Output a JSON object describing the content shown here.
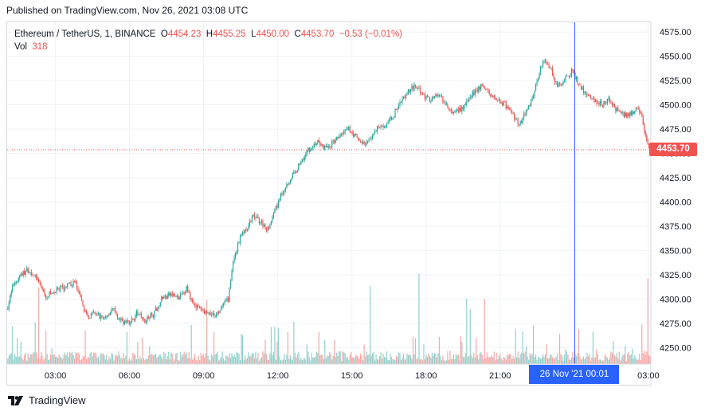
{
  "published": "Published on TradingView.com, Nov 26, 2021 03:08 UTC",
  "brand": {
    "name": "TradingView",
    "logo_icon": "tradingview-logo-icon"
  },
  "legend": {
    "symbol": "Ethereum / TetherUS, 1, BINANCE",
    "o_label": "O",
    "o_value": "4454.23",
    "h_label": "H",
    "h_value": "4455.25",
    "l_label": "L",
    "l_value": "4450.00",
    "c_label": "C",
    "c_value": "4453.70",
    "change": "−0.53 (−0.01%)",
    "vol_label": "Vol",
    "vol_value": "318"
  },
  "price_badge": "4453.70",
  "time_badge": "26 Nov '21   00:01",
  "colors": {
    "up": "#26a69a",
    "down": "#ef5350",
    "crosshair": "#2962ff",
    "grid": "#f0f3fa"
  },
  "chart_data": {
    "type": "candlestick",
    "interval_minutes": 1,
    "x_range_hours": [
      1.05,
      27.1
    ],
    "y_range": [
      4233,
      4585
    ],
    "x_ticks": [
      {
        "label": "03:00",
        "h": 3
      },
      {
        "label": "06:00",
        "h": 6
      },
      {
        "label": "09:00",
        "h": 9
      },
      {
        "label": "12:00",
        "h": 12
      },
      {
        "label": "15:00",
        "h": 15
      },
      {
        "label": "18:00",
        "h": 18
      },
      {
        "label": "21:00",
        "h": 21
      },
      {
        "label": "03:00",
        "h": 27
      }
    ],
    "y_ticks": [
      4250,
      4275,
      4300,
      4325,
      4350,
      4375,
      4400,
      4425,
      4450,
      4475,
      4500,
      4525,
      4550,
      4575
    ],
    "last_price": 4453.7,
    "crosshair_h": 24.02,
    "close_path_approx": [
      [
        1.05,
        4290
      ],
      [
        1.3,
        4315
      ],
      [
        1.6,
        4325
      ],
      [
        1.9,
        4330
      ],
      [
        2.3,
        4320
      ],
      [
        2.6,
        4303
      ],
      [
        3.0,
        4308
      ],
      [
        3.4,
        4312
      ],
      [
        3.8,
        4318
      ],
      [
        4.0,
        4300
      ],
      [
        4.3,
        4282
      ],
      [
        4.6,
        4285
      ],
      [
        5.0,
        4280
      ],
      [
        5.3,
        4290
      ],
      [
        5.6,
        4278
      ],
      [
        6.0,
        4275
      ],
      [
        6.3,
        4285
      ],
      [
        6.6,
        4278
      ],
      [
        7.0,
        4285
      ],
      [
        7.3,
        4300
      ],
      [
        7.7,
        4305
      ],
      [
        8.0,
        4300
      ],
      [
        8.3,
        4312
      ],
      [
        8.5,
        4300
      ],
      [
        8.8,
        4290
      ],
      [
        9.2,
        4285
      ],
      [
        9.5,
        4282
      ],
      [
        9.7,
        4290
      ],
      [
        10.0,
        4300
      ],
      [
        10.2,
        4340
      ],
      [
        10.5,
        4365
      ],
      [
        10.8,
        4375
      ],
      [
        11.0,
        4385
      ],
      [
        11.3,
        4380
      ],
      [
        11.6,
        4372
      ],
      [
        11.8,
        4385
      ],
      [
        12.1,
        4405
      ],
      [
        12.4,
        4420
      ],
      [
        12.7,
        4430
      ],
      [
        13.0,
        4445
      ],
      [
        13.3,
        4455
      ],
      [
        13.6,
        4462
      ],
      [
        13.9,
        4455
      ],
      [
        14.2,
        4460
      ],
      [
        14.6,
        4470
      ],
      [
        14.9,
        4475
      ],
      [
        15.2,
        4465
      ],
      [
        15.5,
        4460
      ],
      [
        15.8,
        4465
      ],
      [
        16.1,
        4480
      ],
      [
        16.4,
        4478
      ],
      [
        16.7,
        4490
      ],
      [
        17.0,
        4505
      ],
      [
        17.3,
        4515
      ],
      [
        17.6,
        4520
      ],
      [
        17.9,
        4510
      ],
      [
        18.2,
        4505
      ],
      [
        18.5,
        4510
      ],
      [
        18.8,
        4500
      ],
      [
        19.1,
        4490
      ],
      [
        19.4,
        4495
      ],
      [
        19.7,
        4505
      ],
      [
        20.0,
        4515
      ],
      [
        20.3,
        4520
      ],
      [
        20.6,
        4510
      ],
      [
        20.9,
        4505
      ],
      [
        21.2,
        4500
      ],
      [
        21.5,
        4490
      ],
      [
        21.8,
        4480
      ],
      [
        22.1,
        4495
      ],
      [
        22.4,
        4515
      ],
      [
        22.6,
        4535
      ],
      [
        22.8,
        4545
      ],
      [
        23.0,
        4540
      ],
      [
        23.3,
        4520
      ],
      [
        23.6,
        4525
      ],
      [
        23.9,
        4535
      ],
      [
        24.2,
        4520
      ],
      [
        24.5,
        4510
      ],
      [
        24.8,
        4505
      ],
      [
        25.1,
        4500
      ],
      [
        25.4,
        4505
      ],
      [
        25.7,
        4495
      ],
      [
        26.0,
        4490
      ],
      [
        26.3,
        4490
      ],
      [
        26.6,
        4498
      ],
      [
        26.8,
        4480
      ],
      [
        27.0,
        4455
      ],
      [
        27.1,
        4453.7
      ]
    ],
    "volume_scale": "relative"
  }
}
